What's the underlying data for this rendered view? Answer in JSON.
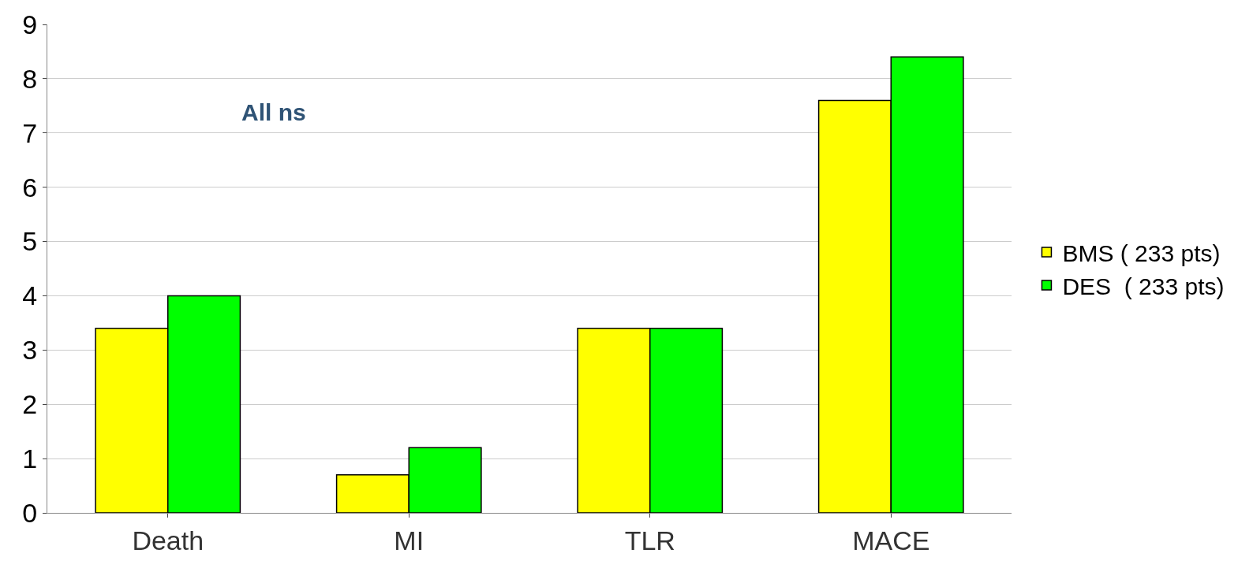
{
  "chart_data": {
    "type": "bar",
    "categories": [
      "Death",
      "MI",
      "TLR",
      "MACE"
    ],
    "series": [
      {
        "name": "BMS ( 233 pts)",
        "color": "#ffff00",
        "values": [
          3.4,
          0.7,
          3.4,
          7.6
        ]
      },
      {
        "name": "DES  ( 233 pts)",
        "color": "#00ff00",
        "values": [
          4.0,
          1.2,
          3.4,
          8.4
        ]
      }
    ],
    "ylim": [
      0,
      9
    ],
    "yticks": [
      0,
      1,
      2,
      3,
      4,
      5,
      6,
      7,
      8,
      9
    ],
    "grid": "y",
    "legend": "right",
    "annotations": [
      "All ns"
    ]
  }
}
